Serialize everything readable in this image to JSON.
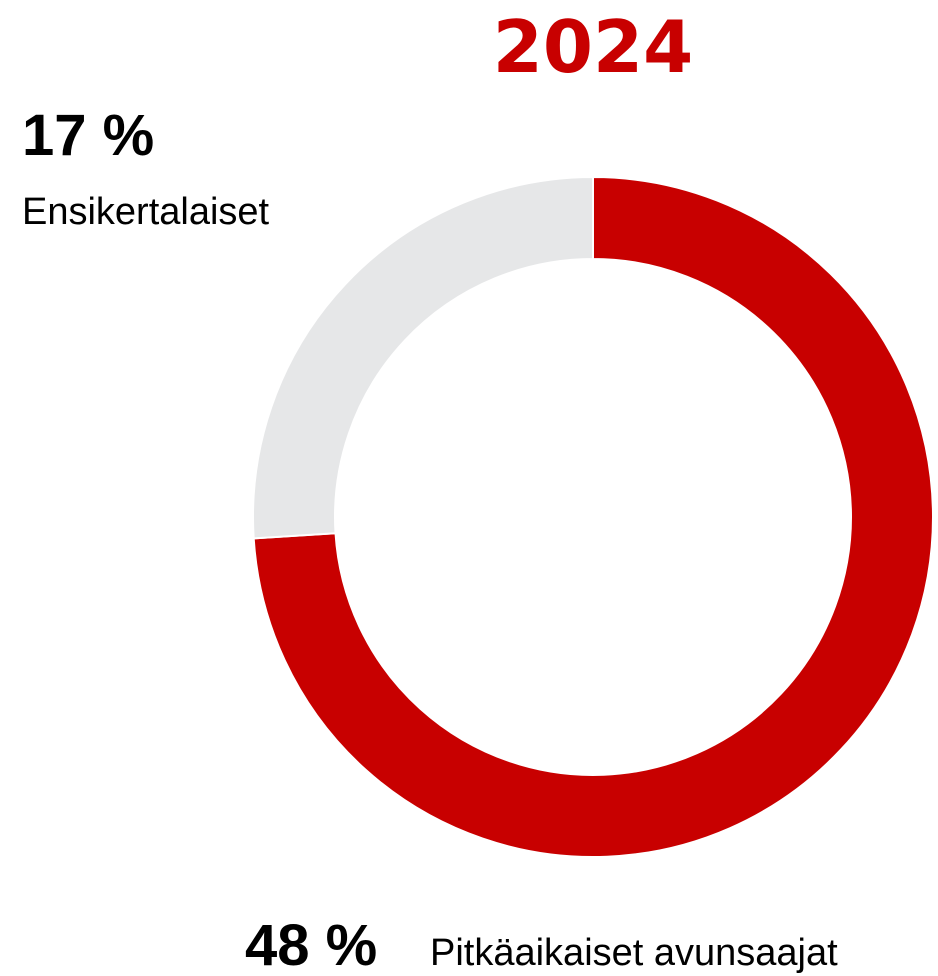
{
  "chart_data": {
    "type": "donut",
    "title": "2024",
    "categories": [
      null,
      null
    ],
    "values": [
      74,
      26
    ],
    "colors": [
      "#c80000",
      "#e6e7e8"
    ],
    "annotations": [
      {
        "value_label": "17 %",
        "text": "Ensikertalaiset"
      },
      {
        "value_label": "48 %",
        "text": "Pitkäaikaiset avunsaajat"
      }
    ]
  }
}
